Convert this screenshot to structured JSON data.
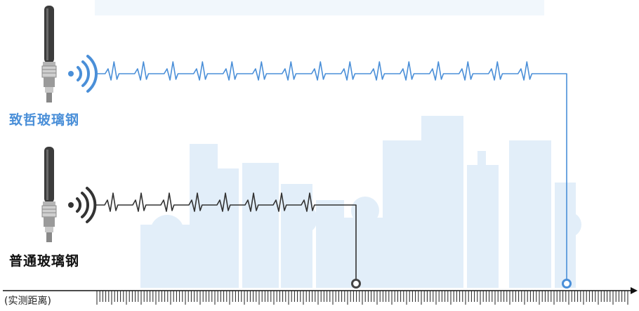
{
  "colors": {
    "premium": "#4a8fd8",
    "regular": "#333333",
    "skyline": "#dbeaf7",
    "antenna": "#3a3a3a"
  },
  "antennas": {
    "premium": {
      "label": "致哲玻璃钢",
      "icon": "wifi-signal-icon"
    },
    "regular": {
      "label": "普通玻璃钢",
      "icon": "wifi-signal-icon"
    }
  },
  "axis": {
    "label": "(实测距离)"
  }
}
